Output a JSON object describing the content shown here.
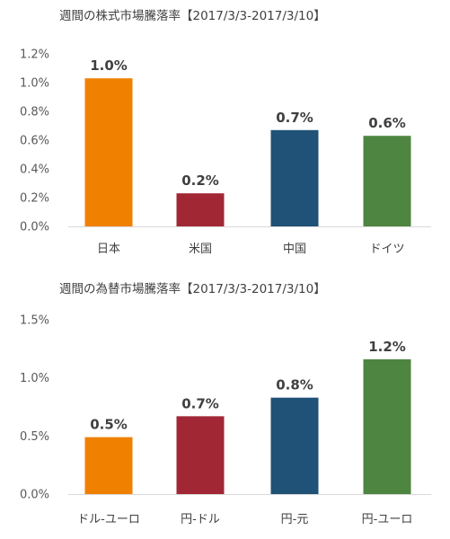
{
  "chart_data": [
    {
      "type": "bar",
      "title": "週間の株式市場騰落率【2017/3/3-2017/3/10】",
      "categories": [
        "日本",
        "米国",
        "中国",
        "ドイツ"
      ],
      "values": [
        1.0,
        0.2,
        0.7,
        0.6
      ],
      "bar_values": [
        1.03,
        0.23,
        0.67,
        0.63
      ],
      "data_labels": [
        "1.0%",
        "0.2%",
        "0.7%",
        "0.6%"
      ],
      "colors": [
        "#F08000",
        "#A22735",
        "#1F5276",
        "#4E8540"
      ],
      "ylim": [
        0,
        1.2
      ],
      "yticks": [
        0,
        0.2,
        0.4,
        0.6,
        0.8,
        1.0,
        1.2
      ],
      "ytick_labels": [
        "0.0%",
        "0.2%",
        "0.4%",
        "0.6%",
        "0.8%",
        "1.0%",
        "1.2%"
      ],
      "grid": false,
      "xlabel": "",
      "ylabel": ""
    },
    {
      "type": "bar",
      "title": "週間の為替市場騰落率【2017/3/3-2017/3/10】",
      "categories": [
        "ドル-ユーロ",
        "円-ドル",
        "円-元",
        "円-ユーロ"
      ],
      "values": [
        0.5,
        0.7,
        0.8,
        1.2
      ],
      "bar_values": [
        0.49,
        0.67,
        0.83,
        1.16
      ],
      "data_labels": [
        "0.5%",
        "0.7%",
        "0.8%",
        "1.2%"
      ],
      "colors": [
        "#F08000",
        "#A22735",
        "#1F5276",
        "#4E8540"
      ],
      "ylim": [
        0,
        1.5
      ],
      "yticks": [
        0,
        0.5,
        1.0,
        1.5
      ],
      "ytick_labels": [
        "0.0%",
        "0.5%",
        "1.0%",
        "1.5%"
      ],
      "grid": false,
      "xlabel": "",
      "ylabel": ""
    }
  ]
}
